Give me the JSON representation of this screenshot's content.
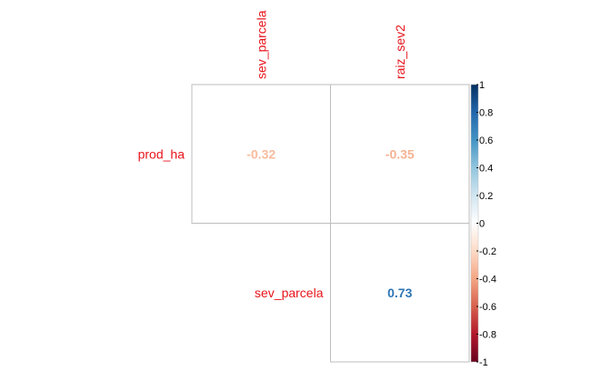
{
  "chart_data": {
    "type": "heatmap",
    "variant": "correlation-matrix-upper-number",
    "columns": [
      "sev_parcela",
      "raiz_sev2"
    ],
    "rows": [
      "prod_ha",
      "sev_parcela"
    ],
    "cells": [
      {
        "row": "prod_ha",
        "col": "sev_parcela",
        "value": -0.32,
        "label": "-0.32"
      },
      {
        "row": "prod_ha",
        "col": "raiz_sev2",
        "value": -0.35,
        "label": "-0.35"
      },
      {
        "row": "sev_parcela",
        "col": "raiz_sev2",
        "value": 0.73,
        "label": "0.73"
      }
    ],
    "colorbar": {
      "range": [
        -1,
        1
      ],
      "ticks": [
        "1",
        "0.8",
        "0.6",
        "0.4",
        "0.2",
        "0",
        "-0.2",
        "-0.4",
        "-0.6",
        "-0.8",
        "-1"
      ],
      "tick_values": [
        1,
        0.8,
        0.6,
        0.4,
        0.2,
        0,
        -0.2,
        -0.4,
        -0.6,
        -0.8,
        -1
      ],
      "colors": [
        "#67001F",
        "#B2182B",
        "#D6604D",
        "#F4A582",
        "#FDDBC7",
        "#FFFFFF",
        "#D1E5F0",
        "#92C5DE",
        "#4393C3",
        "#2166AC",
        "#053061"
      ]
    },
    "label_color": "#E8141B",
    "grid_color": "#BEBEBE",
    "title": "",
    "xlabel": "",
    "ylabel": ""
  }
}
